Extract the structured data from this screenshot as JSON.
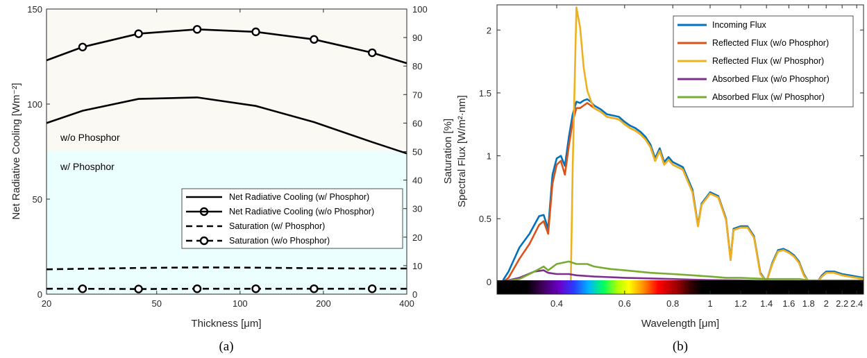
{
  "chart_data": [
    {
      "type": "line",
      "caption": "(a)",
      "xlabel": "Thickness [μm]",
      "ylabel": "Net Radiative Cooling [Wm⁻²]",
      "ylabel_right": "Saturation [%]",
      "xscale": "log",
      "xlim": [
        20,
        400
      ],
      "ylim": [
        0,
        150
      ],
      "ylim_right": [
        0,
        100
      ],
      "xticks": [
        20,
        50,
        100,
        200,
        400
      ],
      "yticks": [
        0,
        50,
        100,
        150
      ],
      "yticks_right": [
        0,
        10,
        20,
        30,
        40,
        50,
        60,
        70,
        80,
        90,
        100
      ],
      "region_labels": [
        "w/o Phosphor",
        "w/ Phosphor"
      ],
      "legend_position": "lower-right",
      "series": [
        {
          "name": "Net Radiative Cooling (w/ Phosphor)",
          "axis": "left",
          "style": "solid",
          "x": [
            20,
            27,
            43,
            70,
            114,
            185,
            300,
            400
          ],
          "y": [
            90,
            96.5,
            102.7,
            103.5,
            99,
            90.5,
            80,
            74
          ]
        },
        {
          "name": "Net Radiative Cooling (w/o Phosphor)",
          "axis": "left",
          "style": "solid-circle",
          "x": [
            20,
            27,
            43,
            70,
            114,
            185,
            300,
            400
          ],
          "y": [
            123,
            130,
            137,
            139.3,
            138,
            134,
            127,
            121.5
          ],
          "marker_x": [
            27,
            43,
            70,
            114,
            185,
            300
          ]
        },
        {
          "name": "Saturation (w/ Phosphor)",
          "axis": "right",
          "style": "dashed",
          "x": [
            20,
            43,
            70,
            114,
            185,
            300,
            400
          ],
          "y": [
            8.7,
            9.2,
            9.4,
            9.3,
            9.1,
            9.0,
            9.0
          ]
        },
        {
          "name": "Saturation (w/o Phosphor)",
          "axis": "right",
          "style": "dashed-circle",
          "x": [
            20,
            27,
            43,
            70,
            114,
            185,
            300,
            400
          ],
          "y": [
            1.9,
            1.9,
            1.8,
            1.9,
            1.9,
            1.9,
            1.9,
            1.9
          ],
          "marker_x": [
            27,
            43,
            70,
            114,
            185,
            300
          ]
        }
      ]
    },
    {
      "type": "line",
      "caption": "(b)",
      "xlabel": "Wavelength [μm]",
      "ylabel": "Spectral Flux [W/m²·nm]",
      "xscale": "log",
      "xlim": [
        0.28,
        2.5
      ],
      "ylim": [
        -0.1,
        2.2
      ],
      "xticks": [
        0.4,
        0.6,
        0.8,
        1,
        1.2,
        1.4,
        1.6,
        1.8,
        2,
        2.2,
        2.4
      ],
      "xticklabels": [
        "0.4",
        "0.6",
        "0.8",
        "1",
        "1.2",
        "1.4",
        "1.6",
        "1.8",
        "2",
        "2.2",
        "2.4"
      ],
      "yticks": [
        0,
        0.5,
        1,
        1.5,
        2
      ],
      "legend_position": "top-right",
      "spectrum_bar": true,
      "series": [
        {
          "name": "Incoming Flux",
          "color": "#0072BD",
          "x": [
            0.29,
            0.3,
            0.32,
            0.34,
            0.36,
            0.37,
            0.38,
            0.39,
            0.4,
            0.41,
            0.42,
            0.43,
            0.44,
            0.45,
            0.46,
            0.47,
            0.48,
            0.49,
            0.5,
            0.52,
            0.54,
            0.56,
            0.58,
            0.6,
            0.62,
            0.64,
            0.66,
            0.68,
            0.7,
            0.72,
            0.74,
            0.76,
            0.78,
            0.8,
            0.85,
            0.9,
            0.93,
            0.95,
            1.0,
            1.05,
            1.1,
            1.13,
            1.15,
            1.2,
            1.25,
            1.3,
            1.35,
            1.4,
            1.45,
            1.5,
            1.55,
            1.6,
            1.65,
            1.7,
            1.75,
            1.8,
            1.85,
            1.9,
            1.95,
            2.0,
            2.1,
            2.2,
            2.3,
            2.4,
            2.5
          ],
          "y": [
            0.01,
            0.08,
            0.27,
            0.38,
            0.52,
            0.53,
            0.42,
            0.85,
            0.98,
            1.0,
            0.92,
            1.15,
            1.33,
            1.43,
            1.42,
            1.44,
            1.45,
            1.43,
            1.4,
            1.37,
            1.33,
            1.32,
            1.31,
            1.27,
            1.24,
            1.22,
            1.19,
            1.15,
            1.09,
            0.98,
            1.06,
            0.95,
            0.99,
            0.95,
            0.91,
            0.73,
            0.45,
            0.62,
            0.71,
            0.68,
            0.5,
            0.18,
            0.42,
            0.44,
            0.44,
            0.36,
            0.07,
            0.0,
            0.15,
            0.25,
            0.26,
            0.24,
            0.21,
            0.16,
            0.06,
            0.0,
            0.0,
            0.0,
            0.05,
            0.08,
            0.08,
            0.06,
            0.05,
            0.04,
            0.03
          ]
        },
        {
          "name": "Reflected Flux (w/o Phosphor)",
          "color": "#D95319",
          "x": [
            0.29,
            0.3,
            0.32,
            0.34,
            0.36,
            0.37,
            0.38,
            0.39,
            0.4,
            0.41,
            0.42,
            0.43,
            0.44,
            0.45,
            0.46,
            0.47,
            0.48,
            0.49,
            0.5,
            0.52,
            0.54,
            0.56,
            0.58,
            0.6,
            0.62,
            0.64,
            0.66,
            0.68,
            0.7,
            0.72,
            0.74,
            0.76,
            0.78,
            0.8,
            0.85,
            0.9,
            0.93,
            0.95,
            1.0,
            1.05,
            1.1,
            1.13,
            1.15,
            1.2,
            1.25,
            1.3,
            1.35,
            1.4,
            1.45,
            1.5,
            1.55,
            1.6,
            1.65,
            1.7,
            1.75,
            1.8,
            1.85,
            1.9,
            1.95,
            2.0,
            2.1,
            2.2,
            2.3,
            2.4,
            2.5
          ],
          "y": [
            0.0,
            0.03,
            0.18,
            0.3,
            0.45,
            0.48,
            0.38,
            0.78,
            0.93,
            0.96,
            0.85,
            1.08,
            1.27,
            1.38,
            1.38,
            1.4,
            1.42,
            1.4,
            1.38,
            1.35,
            1.31,
            1.3,
            1.29,
            1.25,
            1.22,
            1.2,
            1.17,
            1.13,
            1.07,
            0.96,
            1.04,
            0.93,
            0.97,
            0.93,
            0.89,
            0.71,
            0.44,
            0.61,
            0.7,
            0.67,
            0.49,
            0.17,
            0.41,
            0.43,
            0.43,
            0.35,
            0.06,
            0.0,
            0.14,
            0.24,
            0.25,
            0.23,
            0.2,
            0.15,
            0.05,
            0.0,
            0.0,
            0.0,
            0.04,
            0.07,
            0.07,
            0.05,
            0.04,
            0.03,
            0.02
          ]
        },
        {
          "name": "Reflected Flux (w/ Phosphor)",
          "color": "#EDB120",
          "x": [
            0.29,
            0.3,
            0.32,
            0.34,
            0.36,
            0.37,
            0.38,
            0.39,
            0.4,
            0.41,
            0.42,
            0.43,
            0.435,
            0.44,
            0.45,
            0.46,
            0.47,
            0.48,
            0.49,
            0.5,
            0.52,
            0.54,
            0.56,
            0.58,
            0.6,
            0.62,
            0.64,
            0.66,
            0.68,
            0.7,
            0.72,
            0.74,
            0.76,
            0.78,
            0.8,
            0.85,
            0.9,
            0.93,
            0.95,
            1.0,
            1.05,
            1.1,
            1.13,
            1.15,
            1.2,
            1.25,
            1.3,
            1.35,
            1.4,
            1.45,
            1.5,
            1.55,
            1.6,
            1.65,
            1.7,
            1.75,
            1.8,
            1.85,
            1.9,
            1.95,
            2.0,
            2.1,
            2.2,
            2.3,
            2.4,
            2.5
          ],
          "y": [
            0.0,
            0.0,
            0.0,
            0.0,
            0.0,
            0.0,
            0.0,
            0.0,
            0.0,
            0.0,
            0.0,
            0.0,
            0.0,
            0.9,
            2.18,
            2.02,
            1.7,
            1.52,
            1.44,
            1.38,
            1.35,
            1.31,
            1.3,
            1.29,
            1.25,
            1.22,
            1.2,
            1.17,
            1.13,
            1.07,
            0.96,
            1.04,
            0.93,
            0.97,
            0.93,
            0.89,
            0.71,
            0.44,
            0.61,
            0.7,
            0.67,
            0.49,
            0.17,
            0.41,
            0.43,
            0.43,
            0.35,
            0.06,
            0.0,
            0.14,
            0.24,
            0.25,
            0.23,
            0.2,
            0.15,
            0.05,
            0.0,
            0.0,
            0.0,
            0.04,
            0.07,
            0.07,
            0.05,
            0.04,
            0.03,
            0.02
          ]
        },
        {
          "name": "Absorbed Flux (w/o Phosphor)",
          "color": "#7E2F8E",
          "x": [
            0.29,
            0.32,
            0.35,
            0.37,
            0.38,
            0.4,
            0.43,
            0.45,
            0.5,
            0.55,
            0.6,
            0.7,
            0.8,
            0.9,
            1.0,
            1.2,
            1.4,
            1.6,
            1.8,
            2.0,
            2.5
          ],
          "y": [
            0.0,
            0.03,
            0.08,
            0.09,
            0.07,
            0.06,
            0.06,
            0.05,
            0.04,
            0.035,
            0.03,
            0.025,
            0.02,
            0.015,
            0.012,
            0.01,
            0.005,
            0.005,
            0.003,
            0.002,
            0.0
          ]
        },
        {
          "name": "Absorbed Flux (w/ Phosphor)",
          "color": "#77AC30",
          "x": [
            0.29,
            0.32,
            0.35,
            0.37,
            0.38,
            0.4,
            0.43,
            0.45,
            0.48,
            0.5,
            0.55,
            0.6,
            0.7,
            0.8,
            0.9,
            1.0,
            1.1,
            1.2,
            1.4,
            1.6,
            1.7,
            1.8,
            2.0,
            2.5
          ],
          "y": [
            0.0,
            0.02,
            0.08,
            0.12,
            0.09,
            0.14,
            0.16,
            0.14,
            0.14,
            0.12,
            0.1,
            0.09,
            0.07,
            0.06,
            0.05,
            0.04,
            0.03,
            0.03,
            0.02,
            0.02,
            0.02,
            0.01,
            0.01,
            0.01
          ]
        }
      ]
    }
  ]
}
